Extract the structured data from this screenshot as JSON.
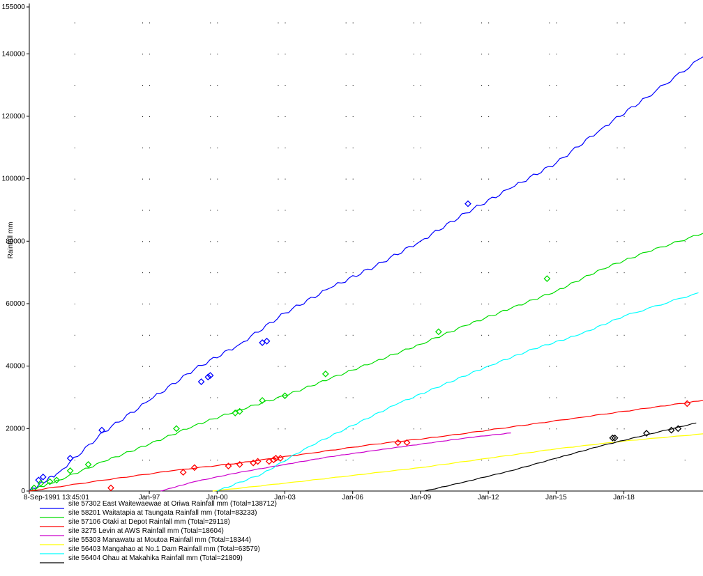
{
  "chart_data": {
    "type": "line",
    "title": "",
    "xlabel": "",
    "ylabel": "Rainfall mm",
    "ylim": [
      0,
      155000
    ],
    "xlim": [
      1991.69,
      2021.5
    ],
    "grid": true,
    "legend_position": "bottom-left",
    "x_tick_labels": [
      {
        "x": 1991.69,
        "label": "8-Sep-1991 13:45:01"
      },
      {
        "x": 1997.0,
        "label": "Jan-97"
      },
      {
        "x": 2000.0,
        "label": "Jan-00"
      },
      {
        "x": 2003.0,
        "label": "Jan-03"
      },
      {
        "x": 2006.0,
        "label": "Jan-06"
      },
      {
        "x": 2009.0,
        "label": "Jan-09"
      },
      {
        "x": 2012.0,
        "label": "Jan-12"
      },
      {
        "x": 2015.0,
        "label": "Jan-15"
      },
      {
        "x": 2018.0,
        "label": "Jan-18"
      }
    ],
    "y_ticks": [
      0,
      20000,
      40000,
      60000,
      80000,
      100000,
      120000,
      140000,
      155000
    ],
    "y_tick_labels": [
      "0",
      "20000",
      "40000",
      "60000",
      "80000",
      "100000",
      "120000",
      "140000",
      "155000"
    ],
    "series": [
      {
        "name": "site 57302 East Waitewaewae at Oriwa   Rainfall mm (Total=138712)",
        "color": "#0000ff",
        "x": [
          1991.69,
          1993.0,
          1995.0,
          1997.0,
          1999.0,
          2001.0,
          2003.0,
          2005.0,
          2007.0,
          2009.0,
          2011.0,
          2013.0,
          2015.0,
          2017.0,
          2019.0,
          2021.5
        ],
        "y": [
          0,
          6000,
          19000,
          29000,
          39000,
          47000,
          57000,
          65000,
          72000,
          80000,
          89000,
          97000,
          105000,
          116000,
          126000,
          139000
        ],
        "markers": [
          {
            "x": 1992.1,
            "y": 3500
          },
          {
            "x": 1992.3,
            "y": 4500
          },
          {
            "x": 1993.5,
            "y": 10500
          },
          {
            "x": 1994.9,
            "y": 19500
          },
          {
            "x": 1999.3,
            "y": 35000
          },
          {
            "x": 1999.6,
            "y": 36500
          },
          {
            "x": 1999.7,
            "y": 37000
          },
          {
            "x": 2002.0,
            "y": 47500
          },
          {
            "x": 2002.2,
            "y": 48000
          },
          {
            "x": 2011.1,
            "y": 92000
          }
        ]
      },
      {
        "name": "site 58201 Waitatapia at Taungata   Rainfall mm (Total=83233)",
        "color": "#00dd00",
        "x": [
          1991.69,
          1993.0,
          1995.0,
          1997.0,
          1999.0,
          2001.0,
          2003.0,
          2005.0,
          2007.0,
          2009.0,
          2011.0,
          2013.0,
          2015.0,
          2017.0,
          2019.0,
          2021.5
        ],
        "y": [
          0,
          3500,
          9500,
          15000,
          21000,
          26000,
          30500,
          36000,
          41500,
          47000,
          53000,
          58500,
          64000,
          71000,
          76500,
          82500
        ],
        "markers": [
          {
            "x": 1991.9,
            "y": 1000
          },
          {
            "x": 1992.2,
            "y": 2500
          },
          {
            "x": 1992.6,
            "y": 3000
          },
          {
            "x": 1992.9,
            "y": 3500
          },
          {
            "x": 1993.5,
            "y": 6500
          },
          {
            "x": 1994.3,
            "y": 8500
          },
          {
            "x": 1998.2,
            "y": 20000
          },
          {
            "x": 2000.8,
            "y": 25000
          },
          {
            "x": 2001.0,
            "y": 25500
          },
          {
            "x": 2002.0,
            "y": 29000
          },
          {
            "x": 2003.0,
            "y": 30500
          },
          {
            "x": 2004.8,
            "y": 37500
          },
          {
            "x": 2009.8,
            "y": 51000
          },
          {
            "x": 2014.6,
            "y": 68000
          }
        ]
      },
      {
        "name": "site 57106 Otaki at Depot   Rainfall mm (Total=29118)",
        "color": "#ff0000",
        "x": [
          1991.69,
          1995.0,
          1998.0,
          2001.0,
          2004.0,
          2007.0,
          2010.0,
          2013.0,
          2016.0,
          2019.0,
          2021.5
        ],
        "y": [
          0,
          3500,
          6500,
          9000,
          12000,
          15000,
          17500,
          20500,
          23500,
          26500,
          29000
        ],
        "markers": [
          {
            "x": 1995.3,
            "y": 1000
          },
          {
            "x": 1998.5,
            "y": 6000
          },
          {
            "x": 1999.0,
            "y": 7500
          },
          {
            "x": 2000.5,
            "y": 8000
          },
          {
            "x": 2001.0,
            "y": 8500
          },
          {
            "x": 2001.6,
            "y": 9000
          },
          {
            "x": 2001.8,
            "y": 9500
          },
          {
            "x": 2002.3,
            "y": 9500
          },
          {
            "x": 2002.5,
            "y": 10000
          },
          {
            "x": 2002.6,
            "y": 10500
          },
          {
            "x": 2002.8,
            "y": 10500
          },
          {
            "x": 2008.0,
            "y": 15500
          },
          {
            "x": 2008.4,
            "y": 15500
          },
          {
            "x": 2020.8,
            "y": 28000
          }
        ]
      },
      {
        "name": "site 3275 Levin at AWS   Rainfall mm (Total=18604)",
        "color": "#cc00cc",
        "x": [
          1997.5,
          1999.0,
          2001.0,
          2003.0,
          2005.0,
          2007.0,
          2009.0,
          2011.0,
          2013.0
        ],
        "y": [
          0,
          3000,
          6000,
          8500,
          11000,
          13000,
          15000,
          17000,
          18600
        ],
        "markers": []
      },
      {
        "name": "site 55303 Manawatu at Moutoa   Rainfall mm (Total=18344)",
        "color": "#ffff00",
        "x": [
          1999.8,
          2003.0,
          2006.0,
          2009.0,
          2012.0,
          2015.0,
          2018.0,
          2021.5
        ],
        "y": [
          0,
          2500,
          5000,
          7500,
          10500,
          13500,
          16000,
          18300
        ],
        "markers": []
      },
      {
        "name": "site 56403 Mangahao at No.1 Dam   Rainfall mm (Total=63579)",
        "color": "#00ffff",
        "x": [
          2000.0,
          2002.0,
          2004.0,
          2006.0,
          2008.0,
          2010.0,
          2012.0,
          2014.0,
          2016.0,
          2018.0,
          2021.3
        ],
        "y": [
          0,
          5500,
          14000,
          21000,
          28000,
          34000,
          40000,
          45500,
          50000,
          56000,
          63500
        ],
        "markers": []
      },
      {
        "name": "site 56404 Ohau at Makahika   Rainfall mm (Total=21809)",
        "color": "#000000",
        "x": [
          2009.2,
          2011.0,
          2013.0,
          2015.0,
          2017.0,
          2019.0,
          2021.2
        ],
        "y": [
          0,
          3000,
          6500,
          10500,
          14500,
          18000,
          21800
        ],
        "markers": [
          {
            "x": 2017.5,
            "y": 17000
          },
          {
            "x": 2017.6,
            "y": 17000
          },
          {
            "x": 2019.0,
            "y": 18500
          },
          {
            "x": 2020.1,
            "y": 19500
          },
          {
            "x": 2020.4,
            "y": 20000
          }
        ]
      }
    ]
  }
}
